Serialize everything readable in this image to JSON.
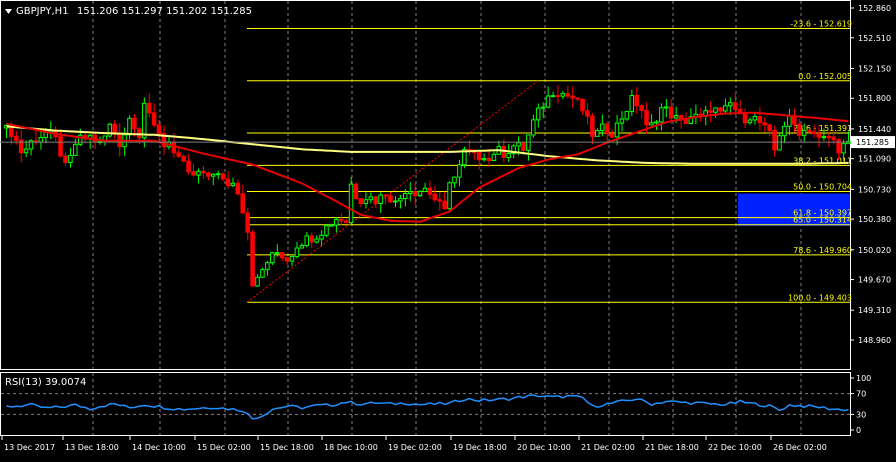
{
  "header": {
    "symbol_label": "GBPJPY,H1",
    "ohlc_label": "151.206 151.297 151.202 151.285"
  },
  "rsi_label": "RSI(13) 39.0074",
  "colors": {
    "background": "#000000",
    "axis": "#ffffff",
    "grid": "#808080",
    "candle_up": "#00ff00",
    "candle_down": "#ff0000",
    "ma_red": "#e60000",
    "ma_yellow": "#ffff80",
    "fibo": "#ffff00",
    "fibo_trend": "#ff0000",
    "rsi_line": "#1e90ff",
    "zone_fill": "#0022ff"
  },
  "chart_data": [
    {
      "type": "candlestick",
      "title": "GBPJPY,H1",
      "price_axis_ticks": [
        "152.860",
        "152.510",
        "152.150",
        "151.800",
        "151.440",
        "151.090",
        "150.730",
        "150.380",
        "150.020",
        "149.670",
        "149.310",
        "148.960"
      ],
      "current_price": "151.285",
      "ylim": [
        148.96,
        152.86
      ],
      "x_tick_labels": [
        "13 Dec 2017",
        "13 Dec 18:00",
        "14 Dec 10:00",
        "15 Dec 02:00",
        "15 Dec 18:00",
        "18 Dec 10:00",
        "19 Dec 02:00",
        "19 Dec 18:00",
        "20 Dec 10:00",
        "21 Dec 02:00",
        "21 Dec 18:00",
        "22 Dec 10:00",
        "26 Dec 02:00"
      ],
      "fibonacci_levels": [
        {
          "label": "-23.6 - 152.619",
          "value": 152.619
        },
        {
          "label": "0.0 - 152.005",
          "value": 152.005
        },
        {
          "label": "23.6 - 151.391",
          "value": 151.391
        },
        {
          "label": "38.2 - 151.011",
          "value": 151.011
        },
        {
          "label": "50.0 - 150.704",
          "value": 150.704
        },
        {
          "label": "61.8 - 150.397",
          "value": 150.397
        },
        {
          "label": "65.0 - 150.314",
          "value": 150.314
        },
        {
          "label": "78.6 - 149.960",
          "value": 149.96
        },
        {
          "label": "100.0 - 149.403",
          "value": 149.403
        }
      ],
      "zone": {
        "from": 150.3,
        "to": 150.68
      },
      "price_path": [
        [
          0,
          151.45
        ],
        [
          2,
          151.4
        ],
        [
          4,
          151.15
        ],
        [
          6,
          151.3
        ],
        [
          9,
          151.4
        ],
        [
          11,
          151.3
        ],
        [
          13,
          150.95
        ],
        [
          15,
          151.3
        ],
        [
          18,
          151.35
        ],
        [
          20,
          151.25
        ],
        [
          22,
          151.5
        ],
        [
          24,
          151.25
        ],
        [
          26,
          151.6
        ],
        [
          28,
          151.35
        ],
        [
          29,
          151.85
        ],
        [
          30,
          151.5
        ],
        [
          32,
          151.4
        ],
        [
          33,
          151.2
        ],
        [
          34,
          151.35
        ],
        [
          35,
          151.1
        ],
        [
          37,
          151.0
        ],
        [
          39,
          150.85
        ],
        [
          40,
          150.95
        ],
        [
          41,
          150.85
        ],
        [
          43,
          150.95
        ],
        [
          45,
          150.8
        ],
        [
          47,
          150.8
        ],
        [
          48,
          150.7
        ],
        [
          49,
          150.45
        ],
        [
          50,
          150.2
        ],
        [
          51,
          149.5
        ],
        [
          52,
          149.7
        ],
        [
          54,
          149.9
        ],
        [
          56,
          150.0
        ],
        [
          58,
          149.9
        ],
        [
          60,
          150.1
        ],
        [
          62,
          150.15
        ],
        [
          64,
          150.2
        ],
        [
          66,
          150.3
        ],
        [
          68,
          150.4
        ],
        [
          70,
          150.35
        ],
        [
          71,
          150.9
        ],
        [
          72,
          150.6
        ],
        [
          74,
          150.65
        ],
        [
          76,
          150.6
        ],
        [
          78,
          150.7
        ],
        [
          80,
          150.55
        ],
        [
          82,
          150.75
        ],
        [
          84,
          150.7
        ],
        [
          86,
          150.75
        ],
        [
          88,
          150.6
        ],
        [
          90,
          150.45
        ],
        [
          91,
          150.95
        ],
        [
          92,
          150.85
        ],
        [
          94,
          151.2
        ],
        [
          96,
          151.1
        ],
        [
          98,
          151.15
        ],
        [
          99,
          151.05
        ],
        [
          100,
          151.2
        ],
        [
          102,
          151.15
        ],
        [
          104,
          151.25
        ],
        [
          106,
          151.2
        ],
        [
          107,
          151.4
        ],
        [
          108,
          151.55
        ],
        [
          110,
          151.75
        ],
        [
          112,
          151.9
        ],
        [
          114,
          151.85
        ],
        [
          116,
          151.8
        ],
        [
          118,
          151.65
        ],
        [
          120,
          151.35
        ],
        [
          122,
          151.45
        ],
        [
          124,
          151.4
        ],
        [
          126,
          151.6
        ],
        [
          128,
          151.8
        ],
        [
          130,
          151.65
        ],
        [
          131,
          151.4
        ],
        [
          132,
          151.5
        ],
        [
          134,
          151.7
        ],
        [
          136,
          151.6
        ],
        [
          138,
          151.5
        ],
        [
          140,
          151.6
        ],
        [
          142,
          151.55
        ],
        [
          144,
          151.7
        ],
        [
          146,
          151.6
        ],
        [
          148,
          151.75
        ],
        [
          150,
          151.55
        ],
        [
          152,
          151.6
        ],
        [
          154,
          151.5
        ],
        [
          156,
          151.35
        ],
        [
          157,
          151.15
        ],
        [
          158,
          151.45
        ],
        [
          160,
          151.55
        ],
        [
          162,
          151.4
        ],
        [
          164,
          151.45
        ],
        [
          166,
          151.3
        ],
        [
          168,
          151.35
        ],
        [
          170,
          151.2
        ],
        [
          171,
          151.25
        ]
      ],
      "ma_red_path": [
        [
          0,
          151.5
        ],
        [
          10,
          151.38
        ],
        [
          20,
          151.3
        ],
        [
          30,
          151.3
        ],
        [
          40,
          151.15
        ],
        [
          50,
          151.02
        ],
        [
          60,
          150.8
        ],
        [
          66,
          150.62
        ],
        [
          72,
          150.43
        ],
        [
          78,
          150.36
        ],
        [
          84,
          150.35
        ],
        [
          90,
          150.47
        ],
        [
          96,
          150.75
        ],
        [
          104,
          150.98
        ],
        [
          110,
          151.08
        ],
        [
          116,
          151.14
        ],
        [
          122,
          151.28
        ],
        [
          128,
          151.4
        ],
        [
          134,
          151.52
        ],
        [
          140,
          151.58
        ],
        [
          146,
          151.62
        ],
        [
          152,
          151.63
        ],
        [
          158,
          151.6
        ],
        [
          164,
          151.57
        ],
        [
          171,
          151.53
        ]
      ],
      "ma_yellow_path": [
        [
          0,
          151.47
        ],
        [
          10,
          151.42
        ],
        [
          20,
          151.39
        ],
        [
          30,
          151.37
        ],
        [
          40,
          151.32
        ],
        [
          50,
          151.26
        ],
        [
          60,
          151.2
        ],
        [
          70,
          151.17
        ],
        [
          80,
          151.17
        ],
        [
          90,
          151.17
        ],
        [
          100,
          151.19
        ],
        [
          110,
          151.12
        ],
        [
          120,
          151.07
        ],
        [
          130,
          151.04
        ],
        [
          140,
          151.03
        ],
        [
          150,
          151.03
        ],
        [
          160,
          151.03
        ],
        [
          171,
          151.04
        ]
      ]
    },
    {
      "type": "line",
      "title": "RSI(13) 39.0074",
      "axis_ticks": [
        "100",
        "70",
        "30",
        "0"
      ],
      "level_lines": [
        70,
        30
      ],
      "ylim": [
        0,
        100
      ],
      "rsi_path": [
        [
          0,
          45
        ],
        [
          5,
          48
        ],
        [
          8,
          42
        ],
        [
          11,
          44
        ],
        [
          14,
          48
        ],
        [
          17,
          41
        ],
        [
          19,
          46
        ],
        [
          22,
          50
        ],
        [
          25,
          43
        ],
        [
          28,
          49
        ],
        [
          31,
          45
        ],
        [
          33,
          42
        ],
        [
          36,
          40
        ],
        [
          39,
          42
        ],
        [
          42,
          44
        ],
        [
          45,
          41
        ],
        [
          48,
          38
        ],
        [
          50,
          22
        ],
        [
          52,
          28
        ],
        [
          54,
          40
        ],
        [
          57,
          46
        ],
        [
          60,
          43
        ],
        [
          63,
          47
        ],
        [
          66,
          48
        ],
        [
          69,
          54
        ],
        [
          72,
          50
        ],
        [
          75,
          52
        ],
        [
          78,
          50
        ],
        [
          81,
          52
        ],
        [
          84,
          49
        ],
        [
          87,
          50
        ],
        [
          90,
          51
        ],
        [
          93,
          60
        ],
        [
          96,
          57
        ],
        [
          99,
          58
        ],
        [
          102,
          60
        ],
        [
          105,
          64
        ],
        [
          108,
          66
        ],
        [
          111,
          63
        ],
        [
          114,
          65
        ],
        [
          117,
          62
        ],
        [
          119,
          45
        ],
        [
          122,
          50
        ],
        [
          125,
          55
        ],
        [
          128,
          60
        ],
        [
          131,
          50
        ],
        [
          134,
          55
        ],
        [
          137,
          53
        ],
        [
          140,
          52
        ],
        [
          143,
          50
        ],
        [
          146,
          49
        ],
        [
          149,
          54
        ],
        [
          152,
          50
        ],
        [
          155,
          46
        ],
        [
          157,
          38
        ],
        [
          159,
          48
        ],
        [
          162,
          46
        ],
        [
          165,
          44
        ],
        [
          168,
          40
        ],
        [
          171,
          39
        ]
      ]
    }
  ]
}
